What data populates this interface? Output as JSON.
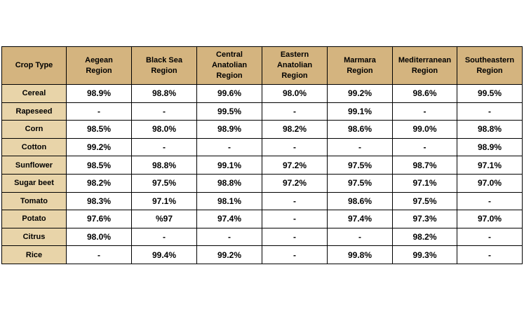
{
  "table": {
    "corner_label": "Crop Type",
    "columns": [
      "Aegean\nRegion",
      "Black Sea\nRegion",
      "Central\nAnatolian\nRegion",
      "Eastern\nAnatolian\nRegion",
      "Marmara\nRegion",
      "Mediterranean\nRegion",
      "Southeastern\nRegion"
    ],
    "rows": [
      {
        "crop": "Cereal",
        "values": [
          "98.9%",
          "98.8%",
          "99.6%",
          "98.0%",
          "99.2%",
          "98.6%",
          "99.5%"
        ]
      },
      {
        "crop": "Rapeseed",
        "values": [
          "-",
          "-",
          "99.5%",
          "-",
          "99.1%",
          "-",
          "-"
        ]
      },
      {
        "crop": "Corn",
        "values": [
          "98.5%",
          "98.0%",
          "98.9%",
          "98.2%",
          "98.6%",
          "99.0%",
          "98.8%"
        ]
      },
      {
        "crop": "Cotton",
        "values": [
          "99.2%",
          "-",
          "-",
          "-",
          "-",
          "-",
          "98.9%"
        ]
      },
      {
        "crop": "Sunflower",
        "values": [
          "98.5%",
          "98.8%",
          "99.1%",
          "97.2%",
          "97.5%",
          "98.7%",
          "97.1%"
        ]
      },
      {
        "crop": "Sugar beet",
        "values": [
          "98.2%",
          "97.5%",
          "98.8%",
          "97.2%",
          "97.5%",
          "97.1%",
          "97.0%"
        ]
      },
      {
        "crop": "Tomato",
        "values": [
          "98.3%",
          "97.1%",
          "98.1%",
          "-",
          "98.6%",
          "97.5%",
          "-"
        ]
      },
      {
        "crop": "Potato",
        "values": [
          "97.6%",
          "%97",
          "97.4%",
          "-",
          "97.4%",
          "97.3%",
          "97.0%"
        ]
      },
      {
        "crop": "Citrus",
        "values": [
          "98.0%",
          "-",
          "-",
          "-",
          "-",
          "98.2%",
          "-"
        ]
      },
      {
        "crop": "Rice",
        "values": [
          "-",
          "99.4%",
          "99.2%",
          "-",
          "99.8%",
          "99.3%",
          "-"
        ]
      }
    ],
    "colors": {
      "header_bg": "#d4b47f",
      "row_label_bg": "#e8d4a9",
      "border": "#000000"
    }
  }
}
